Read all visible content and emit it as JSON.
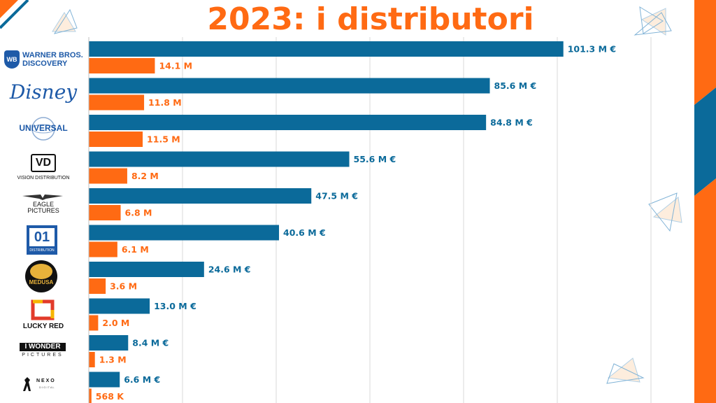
{
  "title": "2023: i distributori",
  "colors": {
    "revenue": "#0b6a9a",
    "admissions": "#ff6a13",
    "grid": "#d9d9d9",
    "accent_orange": "#ff6a13",
    "accent_blue": "#0b6a9a"
  },
  "chart_data": {
    "type": "bar",
    "orientation": "horizontal",
    "categories": [
      "Warner Bros. Discovery",
      "Disney",
      "Universal",
      "Vision Distribution",
      "Eagle Pictures",
      "01 Distribution",
      "Medusa",
      "Lucky Red",
      "I Wonder Pictures",
      "Nexo Digital"
    ],
    "series": [
      {
        "values": [
          101.3,
          85.6,
          84.8,
          55.6,
          47.5,
          40.6,
          24.6,
          13.0,
          8.4,
          6.6
        ],
        "labels": [
          "101.3 M €",
          "85.6 M €",
          "84.8 M €",
          "55.6 M €",
          "47.5 M €",
          "40.6 M €",
          "24.6 M €",
          "13.0 M €",
          "8.4 M €",
          "6.6 M €"
        ]
      },
      {
        "values": [
          14.1,
          11.8,
          11.5,
          8.2,
          6.8,
          6.1,
          3.6,
          2.0,
          1.3,
          0.568
        ],
        "labels": [
          "14.1 M",
          "11.8 M",
          "11.5 M",
          "8.2 M",
          "6.8 M",
          "6.1 M",
          "3.6 M",
          "2.0 M",
          "1.3 M",
          "568 K"
        ]
      }
    ],
    "xlim": [
      0,
      120
    ],
    "grid": true
  },
  "logos": {
    "wb": {
      "line1": "WARNER BROS.",
      "line2": "DISCOVERY",
      "badge": "WB"
    },
    "disney": {
      "text": "Disney"
    },
    "universal": {
      "text": "UNIVERSAL"
    },
    "vision": {
      "mark": "VD",
      "text": "VISION DISTRIBUTION"
    },
    "eagle": {
      "line1": "EAGLE",
      "line2": "PICTURES"
    },
    "o1": {
      "mark": "01",
      "text": "DISTRIBUTION"
    },
    "medusa": {
      "text": "MEDUSA"
    },
    "luckyred": {
      "text": "LUCKY RED"
    },
    "iwonder": {
      "line1": "I WONDER",
      "line2": "PICTURES"
    },
    "nexo": {
      "line1": "N E X O",
      "line2": "D I G I T A L"
    }
  }
}
